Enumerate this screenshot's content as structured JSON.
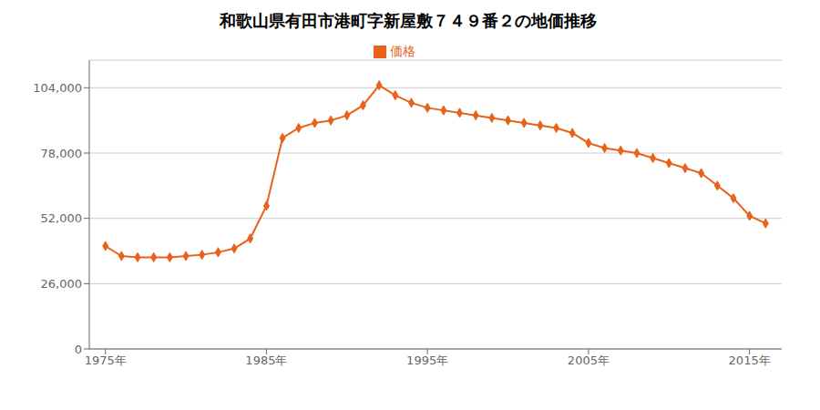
{
  "chart_data": {
    "type": "line",
    "title": "和歌山県有田市港町字新屋敷７４９番２の地価推移",
    "x": [
      1975,
      1976,
      1977,
      1978,
      1979,
      1980,
      1981,
      1982,
      1983,
      1984,
      1985,
      1986,
      1987,
      1988,
      1989,
      1990,
      1991,
      1992,
      1993,
      1994,
      1995,
      1996,
      1997,
      1998,
      1999,
      2000,
      2001,
      2002,
      2003,
      2004,
      2005,
      2006,
      2007,
      2008,
      2009,
      2010,
      2011,
      2012,
      2013,
      2014,
      2015,
      2016
    ],
    "series": [
      {
        "name": "価格",
        "color": "#E8621A",
        "marker": "diamond",
        "values": [
          41000,
          37000,
          36500,
          36500,
          36500,
          37000,
          37500,
          38500,
          40000,
          44000,
          57000,
          84000,
          88000,
          90000,
          91000,
          93000,
          97000,
          105000,
          101000,
          98000,
          96000,
          95000,
          94000,
          93000,
          92000,
          91000,
          90000,
          89000,
          88000,
          86000,
          82000,
          80000,
          79000,
          78000,
          76000,
          74000,
          72000,
          70000,
          65000,
          60000,
          53000,
          50000
        ]
      }
    ],
    "xlim": [
      1974,
      2017
    ],
    "xticks": [
      {
        "value": 1975,
        "label": "1975年"
      },
      {
        "value": 1985,
        "label": "1985年"
      },
      {
        "value": 1995,
        "label": "1995年"
      },
      {
        "value": 2005,
        "label": "2005年"
      },
      {
        "value": 2015,
        "label": "2015年"
      }
    ],
    "ylim": [
      0,
      115000
    ],
    "yticks": [
      0,
      {
        "value": 26000,
        "label": "26,000"
      },
      {
        "value": 52000,
        "label": "52,000"
      },
      {
        "value": 78000,
        "label": "78,000"
      },
      {
        "value": 104000,
        "label": "104,000"
      }
    ],
    "grid": "y",
    "legend": "top"
  }
}
